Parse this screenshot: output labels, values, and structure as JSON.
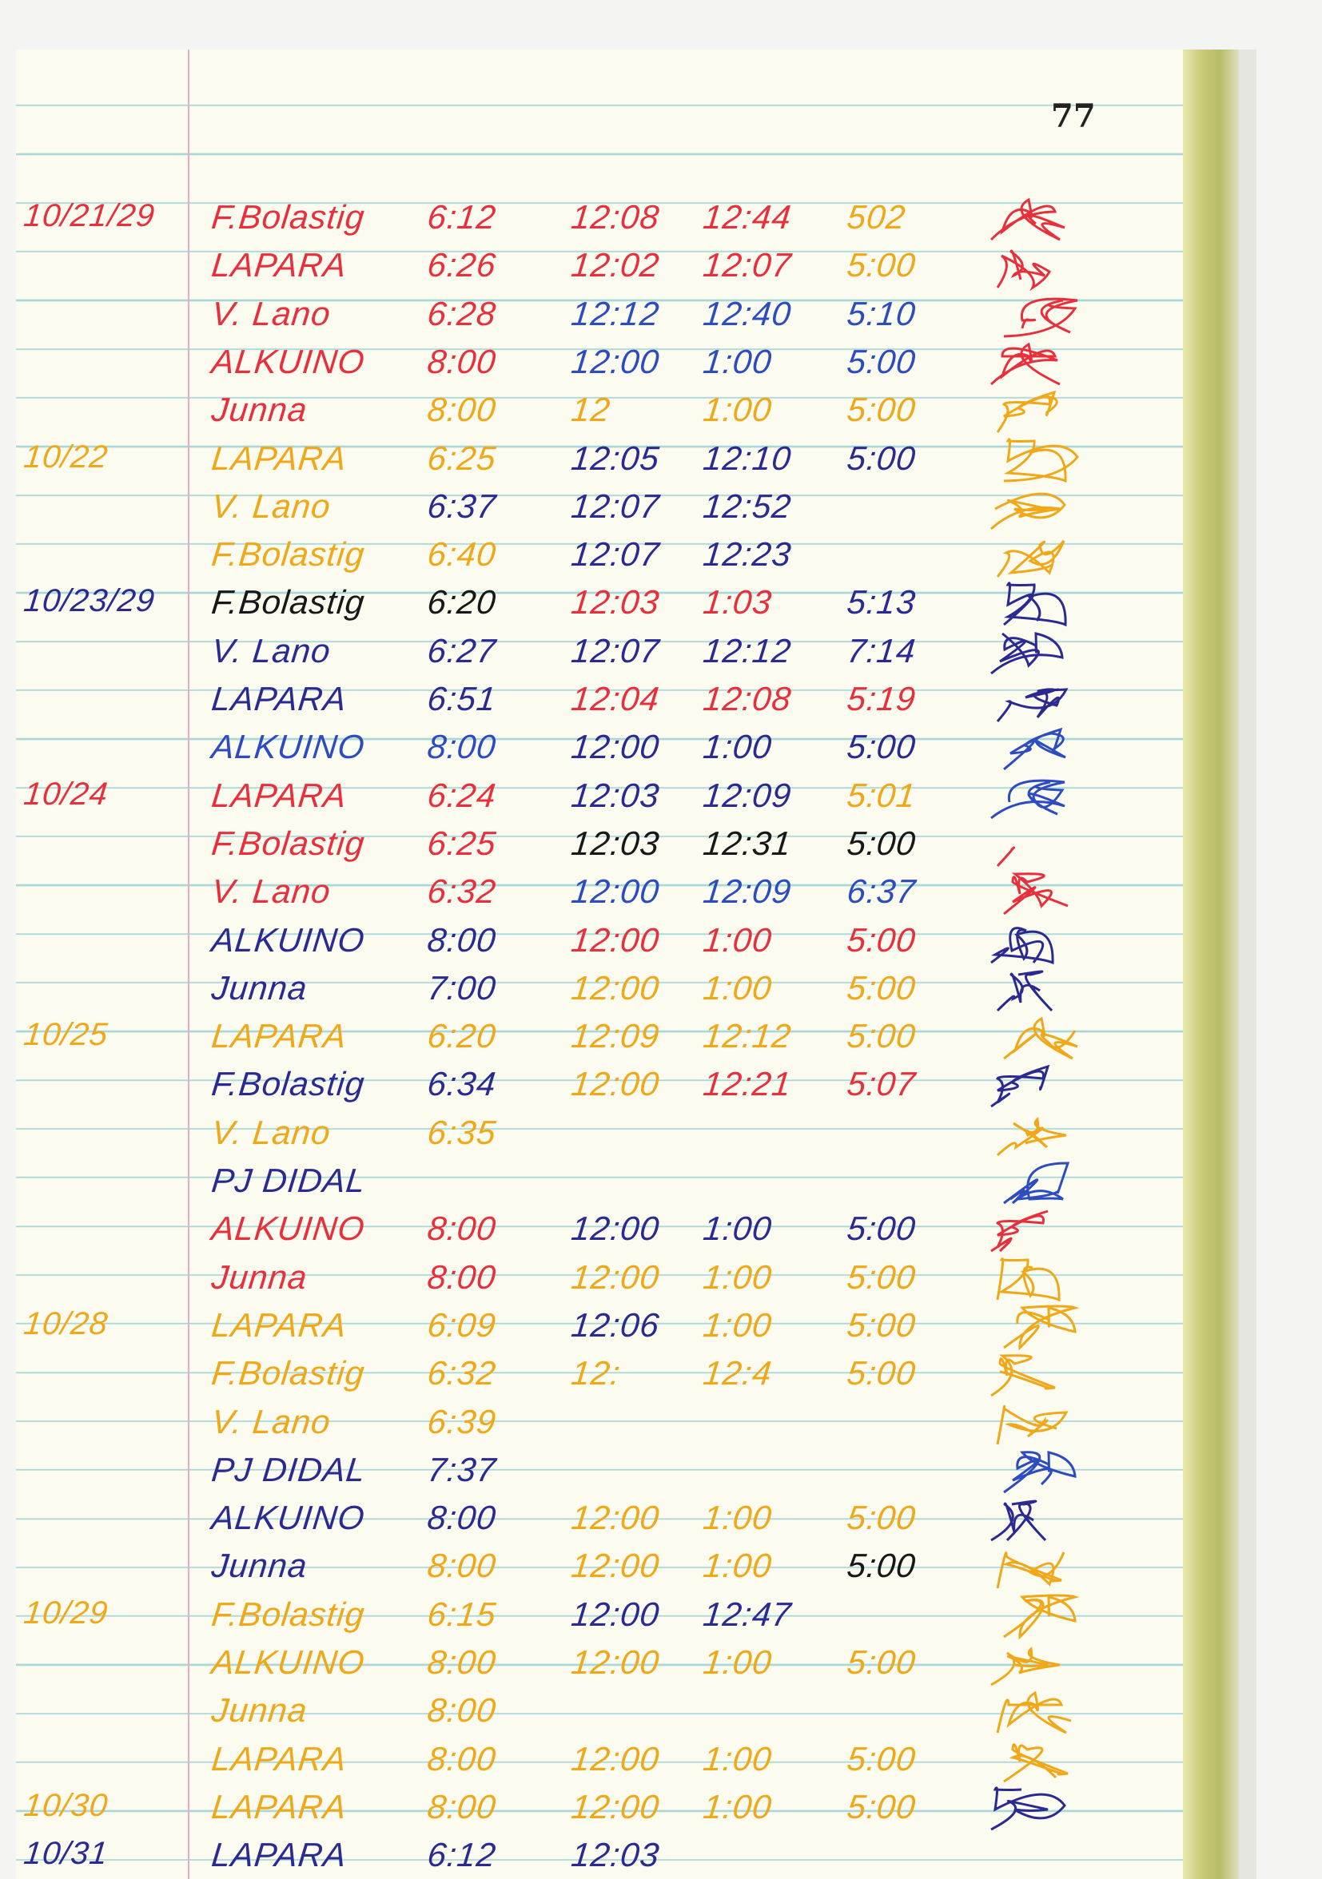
{
  "page_number": "77",
  "colors": {
    "red": "#e8303c",
    "orange": "#f0a818",
    "navy": "#2a2a90",
    "blue": "#2c4cc0",
    "black": "#181818"
  },
  "rows": [
    {
      "date": "10/21/29",
      "date_color": "red",
      "name": "F.Bolastig",
      "name_color": "red",
      "times": [
        [
          "6:12",
          "red"
        ],
        [
          "12:08",
          "red"
        ],
        [
          "12:44",
          "red"
        ],
        [
          "502",
          "orange"
        ]
      ],
      "sig_color": "red"
    },
    {
      "name": "LAPARA",
      "name_color": "red",
      "times": [
        [
          "6:26",
          "red"
        ],
        [
          "12:02",
          "red"
        ],
        [
          "12:07",
          "red"
        ],
        [
          "5:00",
          "orange"
        ]
      ],
      "sig_color": "red"
    },
    {
      "name": "V. Lano",
      "name_color": "red",
      "times": [
        [
          "6:28",
          "red"
        ],
        [
          "12:12",
          "blue"
        ],
        [
          "12:40",
          "blue"
        ],
        [
          "5:10",
          "blue"
        ]
      ],
      "sig_color": "red"
    },
    {
      "name": "ALKUINO",
      "name_color": "red",
      "times": [
        [
          "8:00",
          "red"
        ],
        [
          "12:00",
          "blue"
        ],
        [
          "1:00",
          "blue"
        ],
        [
          "5:00",
          "blue"
        ]
      ],
      "sig_color": "red"
    },
    {
      "name": "Junna",
      "name_color": "red",
      "times": [
        [
          "8:00",
          "orange"
        ],
        [
          "12",
          "orange"
        ],
        [
          "1:00",
          "orange"
        ],
        [
          "5:00",
          "orange"
        ]
      ],
      "sig_color": "orange"
    },
    {
      "date": "10/22",
      "date_color": "orange",
      "name": "LAPARA",
      "name_color": "orange",
      "times": [
        [
          "6:25",
          "orange"
        ],
        [
          "12:05",
          "navy"
        ],
        [
          "12:10",
          "navy"
        ],
        [
          "5:00",
          "navy"
        ]
      ],
      "sig_color": "orange"
    },
    {
      "name": "V. Lano",
      "name_color": "orange",
      "times": [
        [
          "6:37",
          "navy"
        ],
        [
          "12:07",
          "navy"
        ],
        [
          "12:52",
          "navy"
        ]
      ],
      "sig_color": "orange"
    },
    {
      "name": "F.Bolastig",
      "name_color": "orange",
      "times": [
        [
          "6:40",
          "orange"
        ],
        [
          "12:07",
          "navy"
        ],
        [
          "12:23",
          "navy"
        ]
      ],
      "sig_color": "orange"
    },
    {
      "date": "10/23/29",
      "date_color": "navy",
      "name": "F.Bolastig",
      "name_color": "black",
      "times": [
        [
          "6:20",
          "black"
        ],
        [
          "12:03",
          "red"
        ],
        [
          "1:03",
          "red"
        ],
        [
          "5:13",
          "navy"
        ]
      ],
      "sig_color": "navy"
    },
    {
      "name": "V. Lano",
      "name_color": "navy",
      "times": [
        [
          "6:27",
          "navy"
        ],
        [
          "12:07",
          "navy"
        ],
        [
          "12:12",
          "navy"
        ],
        [
          "7:14",
          "navy"
        ]
      ],
      "sig_color": "navy"
    },
    {
      "name": "LAPARA",
      "name_color": "navy",
      "times": [
        [
          "6:51",
          "navy"
        ],
        [
          "12:04",
          "red"
        ],
        [
          "12:08",
          "red"
        ],
        [
          "5:19",
          "red"
        ]
      ],
      "sig_color": "navy"
    },
    {
      "name": "ALKUINO",
      "name_color": "blue",
      "times": [
        [
          "8:00",
          "blue"
        ],
        [
          "12:00",
          "navy"
        ],
        [
          "1:00",
          "navy"
        ],
        [
          "5:00",
          "navy"
        ]
      ],
      "sig_color": "blue"
    },
    {
      "date": "10/24",
      "date_color": "red",
      "name": "LAPARA",
      "name_color": "red",
      "times": [
        [
          "6:24",
          "red"
        ],
        [
          "12:03",
          "navy"
        ],
        [
          "12:09",
          "navy"
        ],
        [
          "5:01",
          "orange"
        ]
      ],
      "sig_color": "blue"
    },
    {
      "name": "F.Bolastig",
      "name_color": "red",
      "times": [
        [
          "6:25",
          "red"
        ],
        [
          "12:03",
          "black"
        ],
        [
          "12:31",
          "black"
        ],
        [
          "5:00",
          "black"
        ]
      ],
      "sig_color": "red"
    },
    {
      "name": "V. Lano",
      "name_color": "red",
      "times": [
        [
          "6:32",
          "red"
        ],
        [
          "12:00",
          "blue"
        ],
        [
          "12:09",
          "blue"
        ],
        [
          "6:37",
          "blue"
        ]
      ],
      "sig_color": "red"
    },
    {
      "name": "ALKUINO",
      "name_color": "navy",
      "times": [
        [
          "8:00",
          "navy"
        ],
        [
          "12:00",
          "red"
        ],
        [
          "1:00",
          "red"
        ],
        [
          "5:00",
          "red"
        ]
      ],
      "sig_color": "navy"
    },
    {
      "name": "Junna",
      "name_color": "navy",
      "times": [
        [
          "7:00",
          "navy"
        ],
        [
          "12:00",
          "orange"
        ],
        [
          "1:00",
          "orange"
        ],
        [
          "5:00",
          "orange"
        ]
      ],
      "sig_color": "navy"
    },
    {
      "date": "10/25",
      "date_color": "orange",
      "name": "LAPARA",
      "name_color": "orange",
      "times": [
        [
          "6:20",
          "orange"
        ],
        [
          "12:09",
          "orange"
        ],
        [
          "12:12",
          "orange"
        ],
        [
          "5:00",
          "orange"
        ]
      ],
      "sig_color": "orange"
    },
    {
      "name": "F.Bolastig",
      "name_color": "navy",
      "times": [
        [
          "6:34",
          "navy"
        ],
        [
          "12:00",
          "orange"
        ],
        [
          "12:21",
          "red"
        ],
        [
          "5:07",
          "red"
        ]
      ],
      "sig_color": "navy"
    },
    {
      "name": "V. Lano",
      "name_color": "orange",
      "times": [
        [
          "6:35",
          "orange"
        ]
      ],
      "sig_color": "orange"
    },
    {
      "name": "PJ DIDAL",
      "name_color": "navy",
      "times": [],
      "sig_color": "blue"
    },
    {
      "name": "ALKUINO",
      "name_color": "red",
      "times": [
        [
          "8:00",
          "red"
        ],
        [
          "12:00",
          "navy"
        ],
        [
          "1:00",
          "navy"
        ],
        [
          "5:00",
          "navy"
        ]
      ],
      "sig_color": "red"
    },
    {
      "name": "Junna",
      "name_color": "red",
      "times": [
        [
          "8:00",
          "red"
        ],
        [
          "12:00",
          "orange"
        ],
        [
          "1:00",
          "orange"
        ],
        [
          "5:00",
          "orange"
        ]
      ],
      "sig_color": "orange"
    },
    {
      "date": "10/28",
      "date_color": "orange",
      "name": "LAPARA",
      "name_color": "orange",
      "times": [
        [
          "6:09",
          "orange"
        ],
        [
          "12:06",
          "navy"
        ],
        [
          "1:00",
          "orange"
        ],
        [
          "5:00",
          "orange"
        ]
      ],
      "sig_color": "orange"
    },
    {
      "name": "F.Bolastig",
      "name_color": "orange",
      "times": [
        [
          "6:32",
          "orange"
        ],
        [
          "12:",
          "orange"
        ],
        [
          "12:4",
          "orange"
        ],
        [
          "5:00",
          "orange"
        ]
      ],
      "sig_color": "orange"
    },
    {
      "name": "V. Lano",
      "name_color": "orange",
      "times": [
        [
          "6:39",
          "orange"
        ]
      ],
      "sig_color": "orange"
    },
    {
      "name": "PJ DIDAL",
      "name_color": "navy",
      "times": [
        [
          "7:37",
          "navy"
        ]
      ],
      "sig_color": "blue"
    },
    {
      "name": "ALKUINO",
      "name_color": "navy",
      "times": [
        [
          "8:00",
          "navy"
        ],
        [
          "12:00",
          "orange"
        ],
        [
          "1:00",
          "orange"
        ],
        [
          "5:00",
          "orange"
        ]
      ],
      "sig_color": "navy"
    },
    {
      "name": "Junna",
      "name_color": "navy",
      "times": [
        [
          "8:00",
          "orange"
        ],
        [
          "12:00",
          "orange"
        ],
        [
          "1:00",
          "orange"
        ],
        [
          "5:00",
          "black"
        ]
      ],
      "sig_color": "orange"
    },
    {
      "date": "10/29",
      "date_color": "orange",
      "name": "F.Bolastig",
      "name_color": "orange",
      "times": [
        [
          "6:15",
          "orange"
        ],
        [
          "12:00",
          "navy"
        ],
        [
          "12:47",
          "navy"
        ]
      ],
      "sig_color": "orange"
    },
    {
      "name": "ALKUINO",
      "name_color": "orange",
      "times": [
        [
          "8:00",
          "orange"
        ],
        [
          "12:00",
          "orange"
        ],
        [
          "1:00",
          "orange"
        ],
        [
          "5:00",
          "orange"
        ]
      ],
      "sig_color": "orange"
    },
    {
      "name": "Junna",
      "name_color": "orange",
      "times": [
        [
          "8:00",
          "orange"
        ]
      ],
      "sig_color": "orange"
    },
    {
      "name": "LAPARA",
      "name_color": "orange",
      "times": [
        [
          "8:00",
          "orange"
        ],
        [
          "12:00",
          "orange"
        ],
        [
          "1:00",
          "orange"
        ],
        [
          "5:00",
          "orange"
        ]
      ],
      "sig_color": "orange"
    },
    {
      "date": "10/30",
      "date_color": "orange",
      "name": "LAPARA",
      "name_color": "orange",
      "times": [
        [
          "8:00",
          "orange"
        ],
        [
          "12:00",
          "orange"
        ],
        [
          "1:00",
          "orange"
        ],
        [
          "5:00",
          "orange"
        ]
      ],
      "sig_color": "navy"
    },
    {
      "date": "10/31",
      "date_color": "navy",
      "name": "LAPARA",
      "name_color": "navy",
      "times": [
        [
          "6:12",
          "navy"
        ],
        [
          "12:03",
          "navy"
        ]
      ]
    }
  ]
}
